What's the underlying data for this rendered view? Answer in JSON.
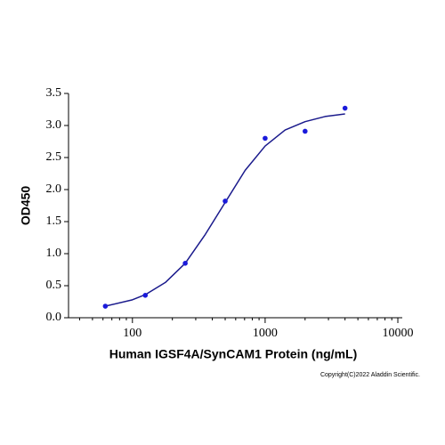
{
  "chart_data": {
    "type": "scatter",
    "xlabel": "Human IGSF4A/SynCAM1 Protein (ng/mL)",
    "ylabel": "OD450",
    "footnote": "Copyright(C)2022 Aladdin Scientific.",
    "xscale": "log",
    "xlim": [
      33,
      10800
    ],
    "ylim": [
      0,
      3.5
    ],
    "xticks": [
      100,
      1000,
      10000
    ],
    "xminorticks": [
      40,
      50,
      60,
      70,
      80,
      90,
      200,
      300,
      400,
      500,
      600,
      700,
      800,
      900,
      2000,
      3000,
      4000,
      5000,
      6000,
      7000,
      8000,
      9000
    ],
    "yticks": [
      {
        "value": 0,
        "label": "0.0"
      },
      0.5,
      {
        "value": 1,
        "label": "1.0"
      },
      1.5,
      {
        "value": 2,
        "label": "2.0"
      },
      2.5,
      {
        "value": 3,
        "label": "3.0"
      },
      3.5
    ],
    "series": [
      {
        "type": "scatter",
        "color": "#1a1adb",
        "x": [
          62.5,
          125,
          250,
          500,
          1000,
          2000,
          4000
        ],
        "values": [
          0.18,
          0.35,
          0.85,
          1.82,
          2.8,
          2.91,
          3.27
        ]
      },
      {
        "type": "line",
        "color": "#1a1a8c",
        "x": [
          62.5,
          100,
          125,
          177,
          250,
          354,
          500,
          707,
          1000,
          1414,
          2000,
          2828,
          4000
        ],
        "values": [
          0.18,
          0.28,
          0.36,
          0.55,
          0.85,
          1.3,
          1.8,
          2.3,
          2.68,
          2.93,
          3.06,
          3.14,
          3.18
        ]
      }
    ]
  }
}
